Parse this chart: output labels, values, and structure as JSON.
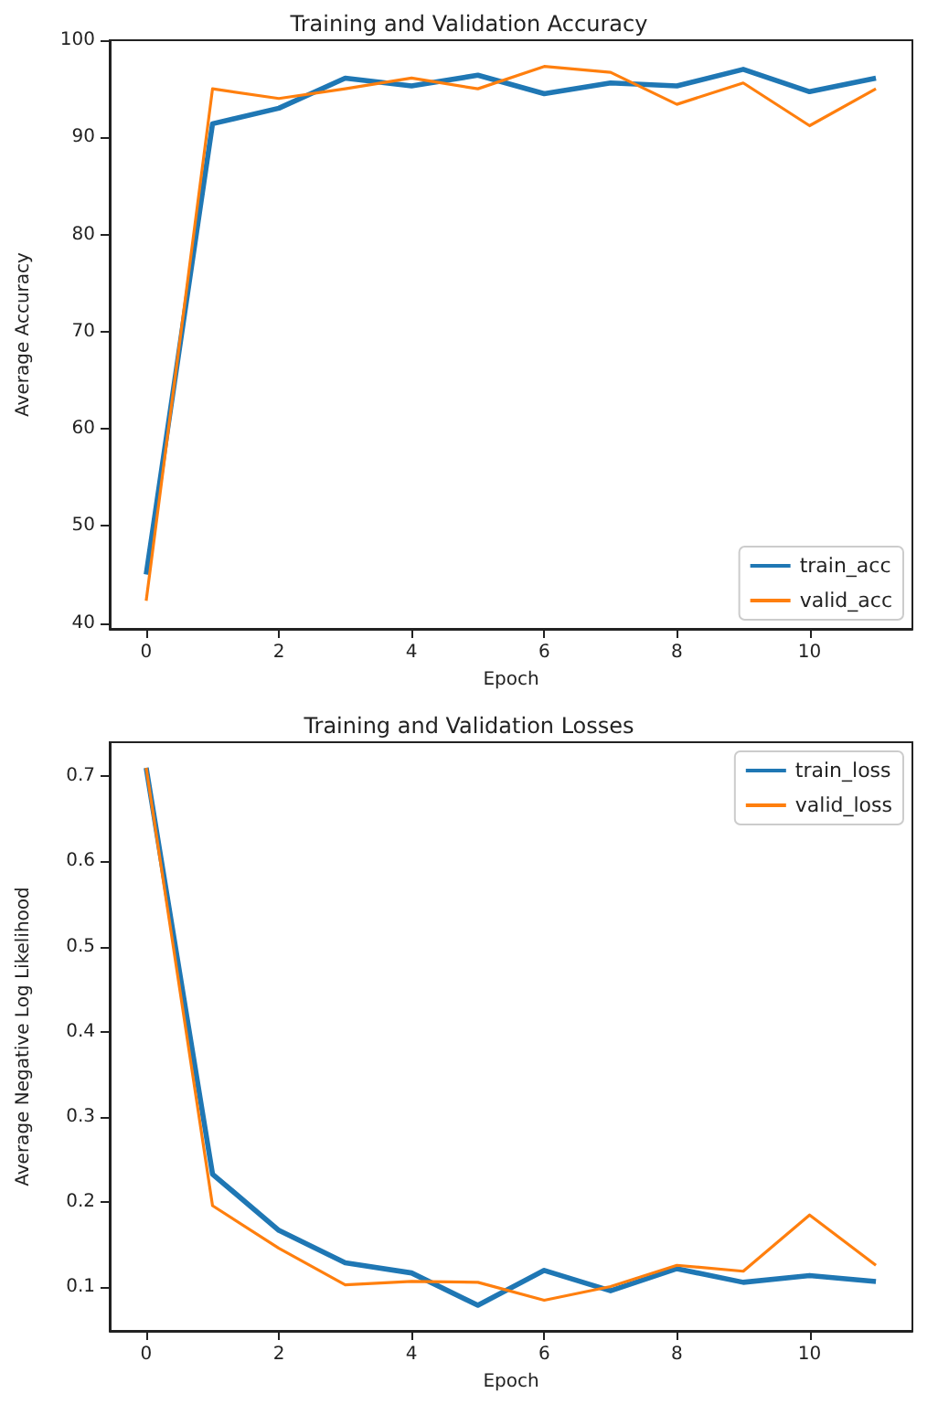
{
  "chart_data": [
    {
      "type": "line",
      "title": "Training and Validation Accuracy",
      "xlabel": "Epoch",
      "ylabel": "Average Accuracy",
      "x": [
        0,
        1,
        2,
        3,
        4,
        5,
        6,
        7,
        8,
        9,
        10,
        11
      ],
      "series": [
        {
          "name": "train_acc",
          "color": "#1f77b4",
          "values": [
            45,
            91.4,
            93,
            96.1,
            95.3,
            96.4,
            94.5,
            95.6,
            95.3,
            97,
            94.7,
            96.1
          ]
        },
        {
          "name": "valid_acc",
          "color": "#ff7f0e",
          "values": [
            42.3,
            95,
            94,
            95,
            96.1,
            95,
            97.3,
            96.7,
            93.4,
            95.6,
            91.2,
            95
          ]
        }
      ],
      "xlim": [
        -0.55,
        11.55
      ],
      "xticks": [
        0,
        2,
        4,
        6,
        8,
        10
      ],
      "ylim": [
        39.4,
        100
      ],
      "yticks": [
        40,
        50,
        60,
        70,
        80,
        90,
        100
      ],
      "grid": false,
      "legend": "bottom right",
      "marker": "none",
      "line_style": "solid"
    },
    {
      "type": "line",
      "title": "Training and Validation Losses",
      "xlabel": "Epoch",
      "ylabel": "Average Negative Log Likelihood",
      "x": [
        0,
        1,
        2,
        3,
        4,
        5,
        6,
        7,
        8,
        9,
        10,
        11
      ],
      "series": [
        {
          "name": "train_loss",
          "color": "#1f77b4",
          "values": [
            0.71,
            0.233,
            0.167,
            0.129,
            0.117,
            0.079,
            0.12,
            0.096,
            0.122,
            0.106,
            0.114,
            0.107
          ]
        },
        {
          "name": "valid_loss",
          "color": "#ff7f0e",
          "values": [
            0.71,
            0.196,
            0.146,
            0.103,
            0.107,
            0.106,
            0.085,
            0.101,
            0.126,
            0.119,
            0.185,
            0.126
          ]
        }
      ],
      "xlim": [
        -0.55,
        11.55
      ],
      "xticks": [
        0,
        2,
        4,
        6,
        8,
        10
      ],
      "ylim": [
        0.049,
        0.74
      ],
      "yticks": [
        0.1,
        0.2,
        0.3,
        0.4,
        0.5,
        0.6,
        0.7
      ],
      "grid": false,
      "legend": "top right",
      "marker": "none",
      "line_style": "solid"
    }
  ]
}
